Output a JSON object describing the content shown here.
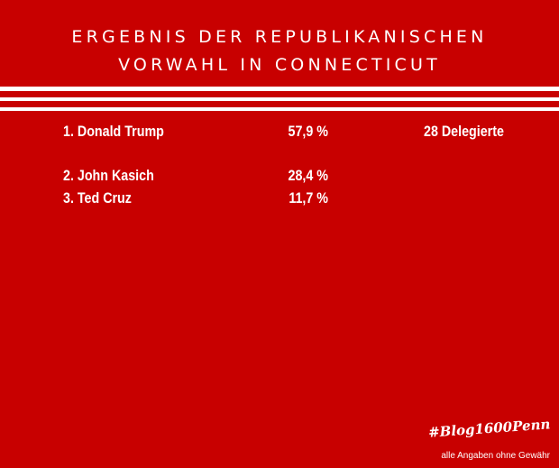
{
  "header": {
    "line1": "ERGEBNIS DER REPUBLIKANISCHEN",
    "line2": "VORWAHL IN CONNECTICUT"
  },
  "results": [
    {
      "rank": "1.",
      "name": "Donald Trump",
      "percent": "57,9 %",
      "delegates": "28 Delegierte"
    },
    {
      "rank": "2.",
      "name": "John Kasich",
      "percent": "28,4 %"
    },
    {
      "rank": "3.",
      "name": "Ted Cruz",
      "percent": "11,7 %"
    }
  ],
  "footer": {
    "hashtag": "#Blog1600Penn",
    "disclaimer": "alle Angaben ohne Gewähr"
  },
  "colors": {
    "background": "#c80000",
    "text": "#ffffff"
  }
}
